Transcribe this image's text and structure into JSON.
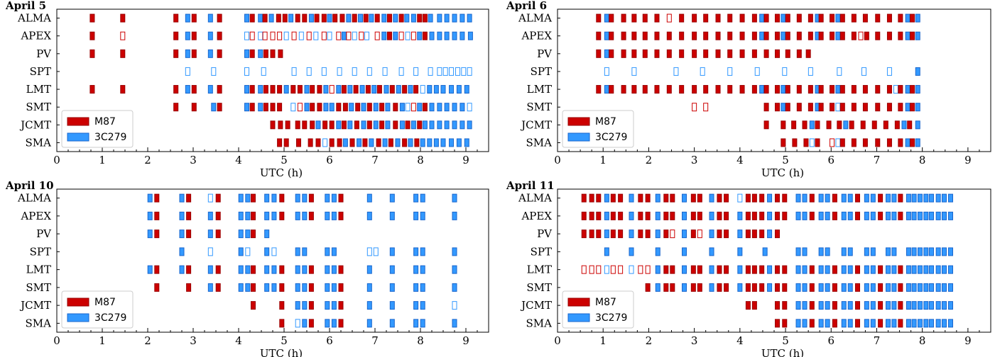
{
  "colors": {
    "m87": "#cc0000",
    "m87_edge": "#990000",
    "c3c279": "#3399ff",
    "c3c279_edge": "#1a66cc",
    "frame": "#000000"
  },
  "chart_data": [
    {
      "type": "timeline",
      "title": "April 5",
      "xlabel": "UTC (h)",
      "xlim": [
        0,
        9.5
      ],
      "xticks": [
        "0",
        "1",
        "2",
        "3",
        "4",
        "5",
        "6",
        "7",
        "8",
        "9"
      ],
      "stations": [
        "ALMA",
        "APEX",
        "PV",
        "SPT",
        "LMT",
        "SMT",
        "JCMT",
        "SMA"
      ],
      "legend": [
        {
          "name": "M87",
          "key": "m"
        },
        {
          "name": "3C279",
          "key": "c"
        }
      ],
      "legend_position": "lower-left",
      "rows": {
        "ALMA": "m0.78 m1.45 m2.62 c2.88 m3.02 c3.38 m3.58 c4.18 m4.3 c4.48 m4.58 c4.72 m4.88 m5.02 c5.15 m5.3 m5.45 c5.6 m5.72 m5.88 c6.0 m6.12 m6.28 c6.42 m6.55 c6.68 m6.8 c6.92 m7.05 c7.2 m7.32 c7.45 m7.58 c7.7 c7.85 m7.98 m8.1 c8.22 c8.42 c8.58 c8.75 c8.92 c9.08",
        "APEX": "m0.78 M1.45 m2.62 c2.88 m3.02 c3.38 m3.58 C4.18 M4.3 C4.48 M4.58 M4.75 M4.9 C5.05 M5.22 C5.38 M5.55 C5.7 M5.88 C6.0 M6.2 c6.32 M6.42 C6.55 M6.7 C6.82 M7.05 c7.2 m7.32 c7.45 M7.58 C7.72 M7.85 c7.98 m8.1 c8.25 c8.42 c8.58 c8.75 c8.92 c9.1",
        "PV": "m0.78 m1.45 m2.62 c2.88 m3.02 c3.38 m3.58 c4.18 m4.3 c4.48 m4.6 m4.75 m4.92",
        "SPT": "C2.88 C3.45 C4.18 C4.55 C5.22 C5.55 C5.88 C6.22 C6.55 C6.88 C7.22 C7.58 C7.9 C8.22 C8.42 C8.55 C8.68 C8.82 C8.95 C9.08",
        "LMT": "m0.78 m1.45 m2.62 c2.88 m3.02 c3.38 m3.58 c4.18 m4.3 c4.48 m4.6 m4.75 m4.9 c5.05 m5.2 m5.35 c5.5 m5.62 m5.78 c5.92 M6.05 c6.2 m6.32 c6.45 m6.58 c6.72 m6.85 c6.98 m7.1 c7.25 m7.38 c7.52 m7.65 c7.78 m7.9 C8.05 c8.2 c8.35 c8.5 c8.68 c8.85 c9.02",
        "SMT": "m2.62 m3.02 c3.45 m3.58 c4.18 m4.3 c4.48 m4.6 m4.75 m4.9 C5.2 M5.35 c5.5 m5.62 m5.78 c5.92 c6.05 m6.2 m6.35 c6.48 m6.62 c6.75 m6.88 c7.02 m7.15 c7.28 m7.45 c7.6 C7.72 M7.85 c7.98 m8.1 c8.25 c8.42 c8.58 c8.75 c8.92 C9.08",
        "JCMT": "m4.75 m4.92 m5.08 m5.3 m5.45 m5.62 c5.75 m5.9 m6.05 c6.2 m6.32 c6.45 m6.6 c6.75 m6.88 c7.02 m7.15 c7.28 m7.45 c7.6 m7.72 c7.85 m7.98 c8.1 c8.25 c8.42 c8.58 c8.75 c8.92 c9.08",
        "SMA": "m4.9 m5.05 m5.32 m5.58 m5.75 C5.9 m6.05 m6.22 c6.35 m6.5 c6.65 m6.78 c6.92 m7.08 c7.22 m7.35 c7.5 m7.65 c7.78 m7.92 c8.05 c8.2 c8.35 c8.5 c8.68 c8.85 c9.02"
      }
    },
    {
      "type": "timeline",
      "title": "April 6",
      "xlabel": "UTC (h)",
      "xlim": [
        0,
        9.5
      ],
      "xticks": [
        "0",
        "1",
        "2",
        "3",
        "4",
        "5",
        "6",
        "7",
        "8",
        "9"
      ],
      "stations": [
        "ALMA",
        "APEX",
        "PV",
        "SPT",
        "LMT",
        "SMT",
        "JCMT",
        "SMA"
      ],
      "legend": [
        {
          "name": "M87",
          "key": "m"
        },
        {
          "name": "3C279",
          "key": "c"
        }
      ],
      "legend_position": "lower-left",
      "rows": {
        "ALMA": "m0.9 c1.08 m1.18 m1.45 m1.68 m1.92 m2.18 M2.45 m2.72 m3.0 m3.25 m3.52 m3.78 m4.05 m4.32 c4.48 m4.58 m4.82 c4.95 m5.05 m5.3 m5.55 c5.7 m5.78 m6.02 c6.15 m6.25 m6.5 m6.75 m7.02 m7.28 m7.52 c7.68 m7.78 c7.9",
        "APEX": "m0.9 c1.08 m1.18 m1.45 m1.68 m1.92 m2.18 m2.45 m2.72 m3.0 m3.25 m3.52 m3.78 m4.05 m4.32 c4.48 m4.58 m4.82 c4.95 m5.05 m5.3 m5.55 c5.7 m5.78 m6.02 c6.15 m6.25 m6.5 M6.65 m6.78 m7.02 m7.28 m7.52 c7.68 m7.78 c7.9",
        "PV": "m0.9 c1.08 m1.18 m1.45 m1.68 m1.92 m2.18 m2.45 m2.72 m3.0 m3.25 m3.52 m3.78 m4.05 m4.32 m4.58 m4.82 m5.05 m5.3 m5.5",
        "SPT": "C1.08 C1.68 C2.6 C3.18 C3.78 C4.38 C4.98 C5.55 C6.18 C6.72 C7.28 c7.9",
        "LMT": "m0.9 c1.08 m1.18 m1.45 m1.68 m1.92 m2.18 m2.45 m2.72 m3.0 m3.25 m3.52 m3.78 m4.05 m4.32 c4.48 m4.58 m4.82 c4.95 m5.05 m5.3 m5.55 c5.7 m5.78 m6.02 c6.15 m6.25 m6.5 m6.75 m7.02 m7.28 C7.42 m7.52 c7.68 m7.78 c7.9",
        "SMT": "M3.0 M3.25 m4.58 m4.82 c4.95 m5.05 m5.3 m5.55 c5.7 m5.78 m6.02 C6.15 m6.25 m6.5 m6.75 m7.02 m7.28 m7.52 c7.68 m7.78 c7.9",
        "JCMT": "m4.58 m4.95 m5.18 m5.42 c5.58 m5.7 m5.95 m6.18 c6.32 m6.45 m6.7 m6.95 m7.2 m7.45 c7.6 m7.72 c7.9",
        "SMA": "m4.95 m5.2 m5.45 C5.58 m5.7 M6.02 C6.15 m6.25 m6.5 m6.75 m7.02 m7.28 m7.52 c7.68 m7.78 c7.9"
      }
    },
    {
      "type": "timeline",
      "title": "April 10",
      "xlabel": "UTC (h)",
      "xlim": [
        0,
        9.5
      ],
      "xticks": [
        "0",
        "1",
        "2",
        "3",
        "4",
        "5",
        "6",
        "7",
        "8",
        "9"
      ],
      "stations": [
        "ALMA",
        "APEX",
        "PV",
        "SPT",
        "LMT",
        "SMT",
        "JCMT",
        "SMA"
      ],
      "legend": [
        {
          "name": "M87",
          "key": "m"
        },
        {
          "name": "3C279",
          "key": "c"
        }
      ],
      "legend_position": "lower-left",
      "rows": {
        "ALMA": "c2.05 m2.2 c2.75 m2.9 C3.38 m3.55 c4.05 c4.2 m4.32 c4.62 c4.78 m4.95 c5.3 c5.45 m5.6 c5.95 c6.1 m6.25 c6.88 c7.38 c7.9 c8.05 c8.75",
        "APEX": "c2.05 m2.2 c2.75 m2.9 c3.38 m3.55 c4.05 c4.2 m4.32 c4.62 c4.78 m4.95 c5.3 c5.45 m5.6 c5.95 c6.1 m6.25 c6.88 c7.38 c7.9 c8.05 c8.75",
        "PV": "c2.05 m2.2 c2.75 m2.9 c3.38 m3.55 c4.05 c4.2 m4.32 c4.62",
        "SPT": "c2.75 C3.38 c4.05 C4.2 c4.62 C4.78 c5.3 c5.45 c5.95 c6.1 C6.88 C7.02 c7.38 c7.9 c8.05 c8.75",
        "LMT": "c2.05 m2.2 c2.75 m2.9 c3.38 m3.55 c4.05 c4.2 m4.32 c4.62 c4.78 m4.95 c5.3 c5.45 m5.6 c5.95 c6.1 m6.25 c6.88 c7.38 c7.9 c8.05 c8.75",
        "SMT": "m2.2 m2.9 c3.38 m3.55 c4.05 c4.2 m4.32 c4.62 c4.78 m4.95 c5.3 c5.45 m5.6 c5.95 c6.1 m6.25 c6.88 c7.38 c7.9 c8.05 c8.75",
        "JCMT": "m4.32 m4.95 c5.3 c5.45 m5.6 c5.95 c6.1 m6.25 c6.88 c7.38 c7.9 c8.05 C8.75",
        "SMA": "m4.95 C5.3 c5.45 m5.6 c5.95 c6.1 m6.25 c6.88 c7.38 c7.9 c8.05 c8.75"
      }
    },
    {
      "type": "timeline",
      "title": "April 11",
      "xlabel": "UTC (h)",
      "xlim": [
        0,
        9.5
      ],
      "xticks": [
        "0",
        "1",
        "2",
        "3",
        "4",
        "5",
        "6",
        "7",
        "8",
        "9"
      ],
      "stations": [
        "ALMA",
        "APEX",
        "PV",
        "SPT",
        "LMT",
        "SMT",
        "JCMT",
        "SMA"
      ],
      "legend": [
        {
          "name": "M87",
          "key": "m"
        },
        {
          "name": "3C279",
          "key": "c"
        }
      ],
      "legend_position": "lower-left",
      "rows": {
        "ALMA": "m0.58 m0.75 m0.9 c1.08 m1.22 m1.38 c1.62 m1.82 m1.98 c2.2 m2.38 m2.52 c2.78 m2.98 m3.12 c3.38 m3.55 m3.7 C4.0 m4.18 m4.32 m4.48 c4.65 m4.82 m4.98 c5.28 c5.42 m5.58 c5.78 c5.92 m6.08 c6.28 c6.42 m6.58 c6.78 c6.92 m7.08 c7.25 c7.38 m7.52 c7.7 c7.82 c7.95 c8.08 c8.2 c8.35 c8.48 c8.62",
        "APEX": "m0.58 m0.75 m0.9 c1.08 m1.22 m1.38 c1.62 m1.82 m1.98 c2.2 m2.38 m2.52 c2.78 m2.98 m3.12 c3.38 m3.55 m3.7 c4.0 m4.18 m4.32 m4.48 c4.65 m4.82 m4.98 c5.28 c5.42 m5.58 c5.78 c5.92 m6.08 c6.28 c6.42 m6.58 c6.78 c6.92 m7.08 c7.25 c7.38 m7.52 c7.7 c7.82 c7.95 c8.08 c8.2 c8.35 c8.48 c8.62",
        "PV": "m0.58 m0.75 m0.9 c1.08 m1.22 m1.38 c1.62 m1.82 m1.98 c2.2 m2.38 M2.52 c2.78 m2.98 M3.12 c3.38 m3.55 m3.7 c4.0 m4.18 m4.32 m4.48 c4.65 m4.82",
        "SPT": "c1.08 c1.62 c2.2 c2.78 c3.38 c4.0 c4.55 c5.28 c5.42 c5.78 c5.92 c6.28 c6.42 c6.78 c6.92 c7.25 c7.38 c7.7 c7.82 c7.95 c8.08 c8.2 c8.35 c8.48 c8.62",
        "LMT": "M0.58 M0.75 M0.9 C1.08 M1.22 M1.38 C1.62 M1.82 M1.98 c2.2 m2.38 m2.52 c2.78 m2.98 m3.12 c3.38 m3.55 m3.7 c4.0 m4.18 m4.32 m4.48 c4.65 m4.82 m4.98 c5.28 c5.42 m5.58 c5.78 c5.92 m6.08 c6.28 c6.42 m6.58 c6.78 c6.92 m7.08 c7.25 c7.38 m7.52 c7.7 c7.82 c7.95 c8.08 c8.2 c8.35 c8.48 c8.62",
        "SMT": "m1.98 c2.2 m2.38 m2.52 c2.78 m2.98 m3.12 c3.38 m3.55 m3.7 c4.0 m4.18 m4.32 m4.48 c4.65 m4.82 m4.98 c5.28 c5.42 m5.58 c5.78 c5.92 m6.08 c6.28 c6.42 m6.58 c6.78 c6.92 m7.08 c7.25 c7.38 m7.52 c7.7 c7.82 c7.95 c8.08 c8.2 c8.35 c8.48 c8.62",
        "JCMT": "m4.18 m4.32 m4.82 m4.98 c5.28 c5.42 m5.58 c5.78 c5.92 m6.08 c6.28 c6.42 m6.58 c6.78 c6.92 m7.08 c7.25 c7.38 m7.52 c7.7 c7.82 c7.95 c8.08 c8.2 c8.35 c8.48 c8.62",
        "SMA": "m4.82 m4.98 c5.28 c5.42 m5.58 c5.78 c5.92 m6.08 c6.28 c6.42 m6.58 c6.78 c6.92 m7.08 c7.25 c7.38 m7.52 c7.7 c7.82 c7.95 c8.08 c8.2 c8.35 c8.48 c8.62"
      }
    }
  ]
}
